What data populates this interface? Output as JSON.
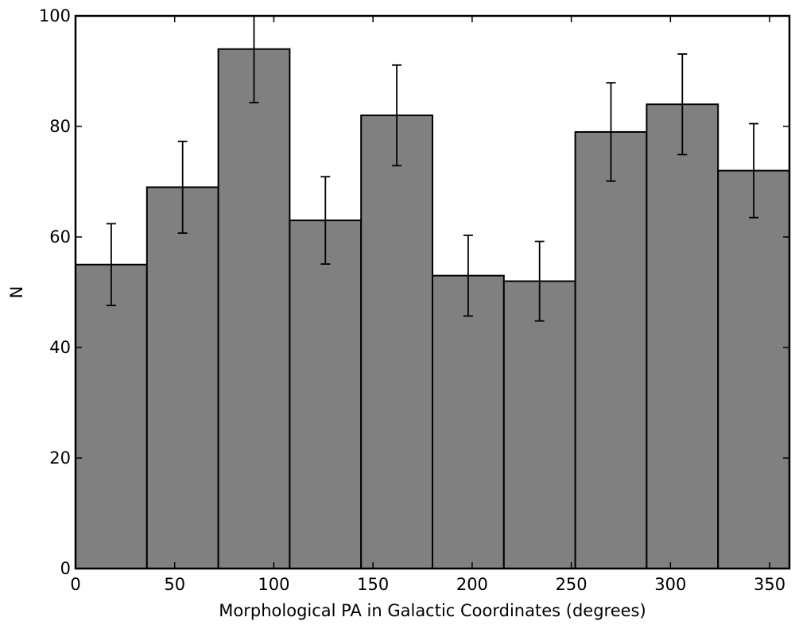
{
  "chart_data": {
    "type": "bar",
    "title": "",
    "xlabel": "Morphological PA in Galactic Coordinates (degrees)",
    "ylabel": "N",
    "xlim": [
      0,
      360
    ],
    "ylim": [
      0,
      100
    ],
    "xticks": [
      0,
      50,
      100,
      150,
      200,
      250,
      300,
      350
    ],
    "yticks": [
      0,
      20,
      40,
      60,
      80,
      100
    ],
    "bin_edges": [
      0,
      36,
      72,
      108,
      144,
      180,
      216,
      252,
      288,
      324,
      360
    ],
    "values": [
      55,
      69,
      94,
      63,
      82,
      53,
      52,
      79,
      84,
      72
    ],
    "error_low": [
      47.6,
      60.7,
      84.3,
      55.1,
      72.9,
      45.7,
      44.8,
      70.1,
      74.9,
      63.5
    ],
    "error_high": [
      62.4,
      77.3,
      103.7,
      70.9,
      91.1,
      60.3,
      59.2,
      87.9,
      93.1,
      80.5
    ],
    "bar_color": "#808080",
    "edge_color": "#000000",
    "grid": false,
    "legend": "none"
  }
}
